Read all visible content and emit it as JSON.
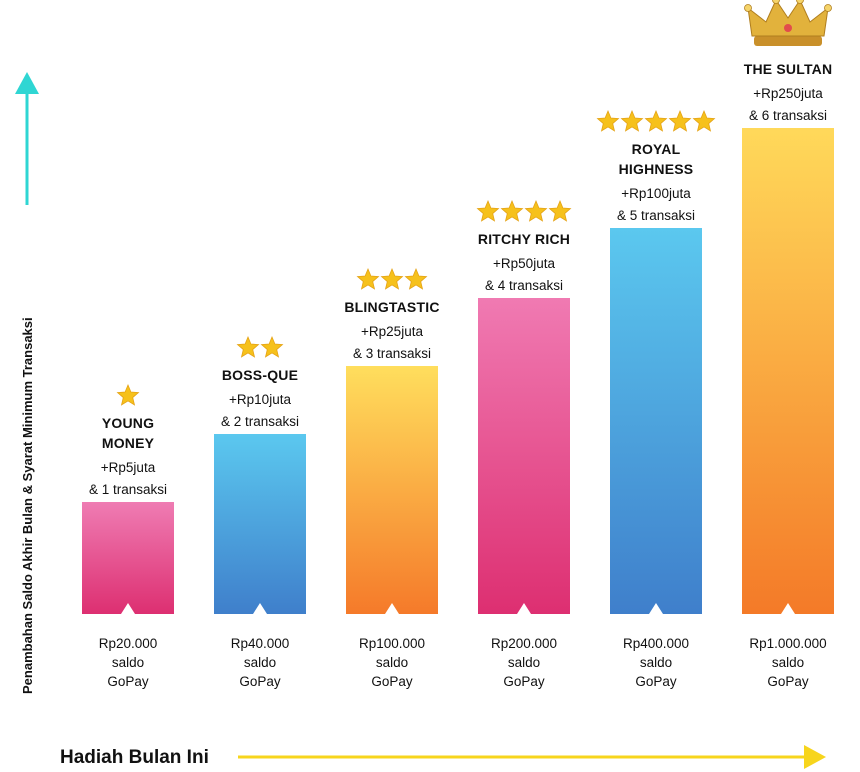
{
  "chart_data": {
    "type": "bar",
    "xlabel": "Hadiah Bulan Ini",
    "ylabel": "Penambahan Saldo Akhir Bulan & Syarat Minimum Transaksi",
    "categories": [
      "YOUNG MONEY",
      "BOSS-QUE",
      "BLINGTASTIC",
      "RITCHY RICH",
      "ROYAL HIGHNESS",
      "THE SULTAN"
    ],
    "tiers": [
      {
        "name": "YOUNG MONEY",
        "name_lines": [
          "YOUNG",
          "MONEY"
        ],
        "bonus": "+Rp5juta",
        "requirement": "& 1 transaksi",
        "stars": 1,
        "value_juta": 5,
        "saldo_lines": [
          "Rp20.000",
          "saldo",
          "GoPay"
        ],
        "gradient": [
          "#ef7cb3",
          "#dd2f71"
        ]
      },
      {
        "name": "BOSS-QUE",
        "name_lines": [
          "BOSS-QUE"
        ],
        "bonus": "+Rp10juta",
        "requirement": "& 2 transaksi",
        "stars": 2,
        "value_juta": 10,
        "saldo_lines": [
          "Rp40.000",
          "saldo",
          "GoPay"
        ],
        "gradient": [
          "#5bc8ef",
          "#3f7fcb"
        ]
      },
      {
        "name": "BLINGTASTIC",
        "name_lines": [
          "BLINGTASTIC"
        ],
        "bonus": "+Rp25juta",
        "requirement": "& 3 transaksi",
        "stars": 3,
        "value_juta": 25,
        "saldo_lines": [
          "Rp100.000",
          "saldo",
          "GoPay"
        ],
        "gradient": [
          "#ffde5d",
          "#f57a2a"
        ]
      },
      {
        "name": "RITCHY RICH",
        "name_lines": [
          "RITCHY RICH"
        ],
        "bonus": "+Rp50juta",
        "requirement": "& 4 transaksi",
        "stars": 4,
        "value_juta": 50,
        "saldo_lines": [
          "Rp200.000",
          "saldo",
          "GoPay"
        ],
        "gradient": [
          "#f07ab2",
          "#dd2f71"
        ]
      },
      {
        "name": "ROYAL HIGHNESS",
        "name_lines": [
          "ROYAL",
          "HIGHNESS"
        ],
        "bonus": "+Rp100juta",
        "requirement": "& 5 transaksi",
        "stars": 5,
        "value_juta": 100,
        "saldo_lines": [
          "Rp400.000",
          "saldo",
          "GoPay"
        ],
        "gradient": [
          "#5bc8ef",
          "#3f7fcb"
        ]
      },
      {
        "name": "THE SULTAN",
        "name_lines": [
          "THE SULTAN"
        ],
        "bonus": "+Rp250juta",
        "requirement": "& 6 transaksi",
        "stars": 0,
        "crown": true,
        "value_juta": 250,
        "saldo_lines": [
          "Rp1.000.000",
          "saldo",
          "GoPay"
        ],
        "gradient": [
          "#ffd95a",
          "#f47a28"
        ]
      }
    ],
    "colors": {
      "y_axis": "#2fd6d3",
      "x_axis": "#f7d51c",
      "star": "#f6c11b",
      "crown": "#e2b23c"
    }
  }
}
